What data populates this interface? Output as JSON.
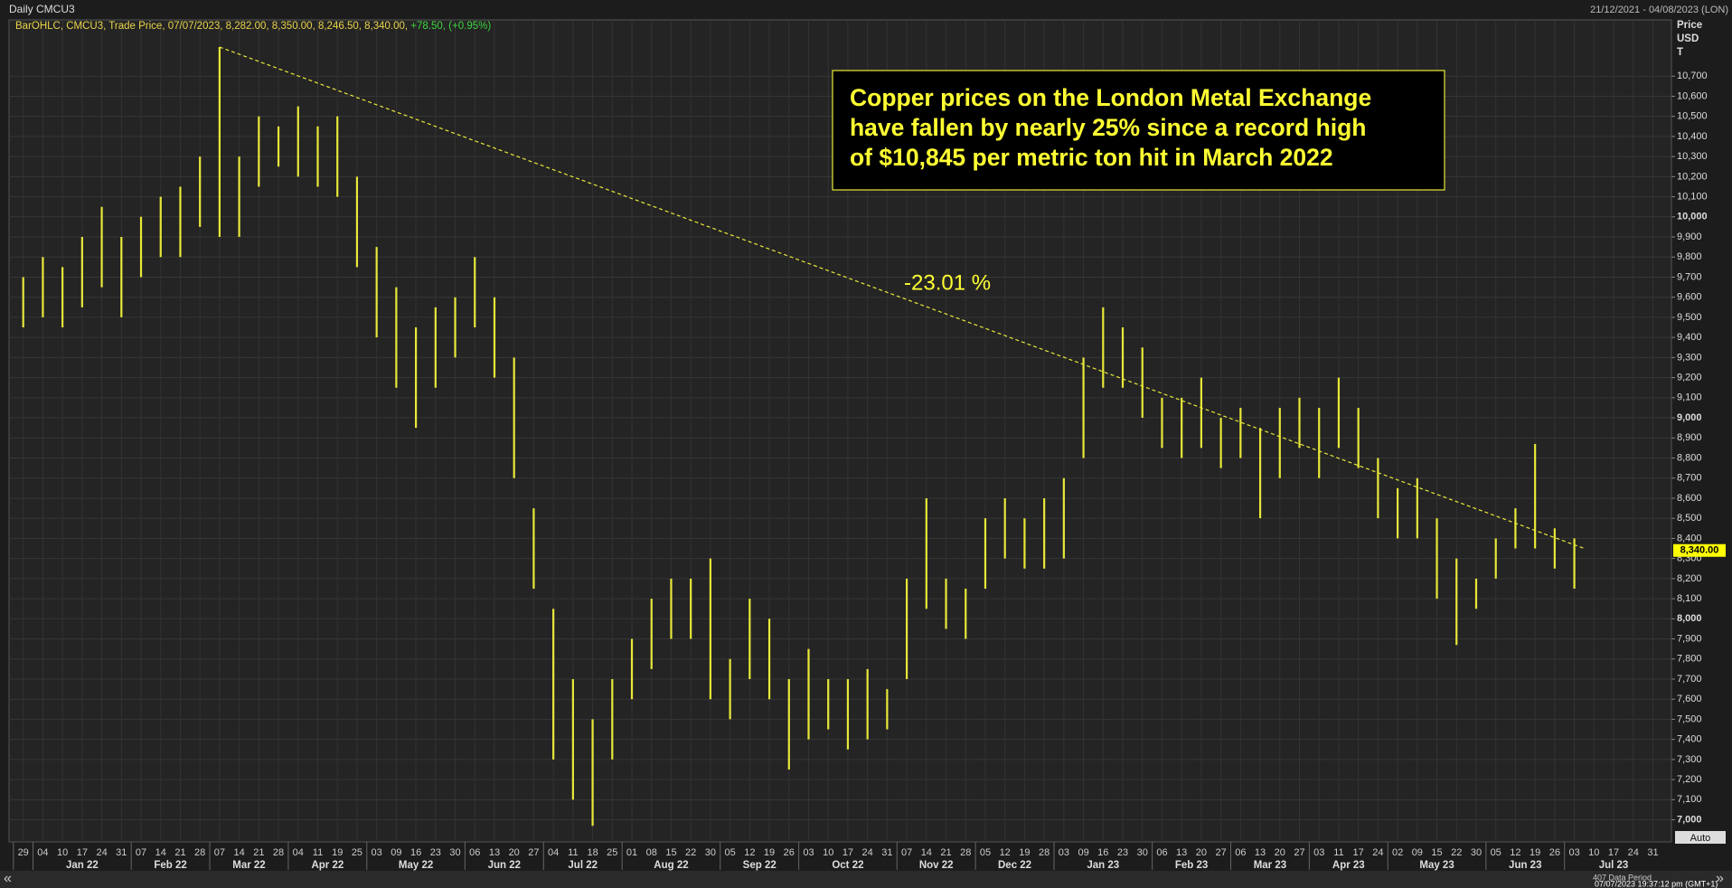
{
  "chart_data": {
    "type": "bar_range",
    "title": "Daily CMCU3",
    "date_range": "21/12/2021 - 04/08/2023 (LON)",
    "legend_text": "BarOHLC, CMCU3, Trade Price, 07/07/2023, 8,282.00, 8,350.00, 8,246.50, 8,340.00,",
    "legend_change": "+78.50, (+0.95%)",
    "y_axis_label": [
      "Price",
      "USD",
      "T"
    ],
    "annotation": [
      "Copper prices on the London Metal Exchange",
      "have fallen by nearly 25% since a record high",
      "of $10,845 per metric ton hit in March 2022"
    ],
    "trend_label": "-23.01 %",
    "trendline": {
      "values": [
        10845,
        8350
      ]
    },
    "last_price": {
      "value": 8340,
      "label": "8,340.00"
    },
    "auto_label": "Auto",
    "footer_period": "407 Data Period",
    "footer_time": "07/07/2023 19:37:12 pm (GMT+1)",
    "color": "#e8e83a",
    "grid": true,
    "xtick_labels": [
      "29",
      "04",
      "10",
      "17",
      "24",
      "31",
      "07",
      "14",
      "21",
      "28",
      "07",
      "14",
      "21",
      "28",
      "04",
      "11",
      "19",
      "25",
      "03",
      "09",
      "16",
      "23",
      "30",
      "06",
      "13",
      "20",
      "27",
      "04",
      "11",
      "18",
      "25",
      "01",
      "08",
      "15",
      "22",
      "30",
      "05",
      "12",
      "19",
      "26",
      "03",
      "10",
      "17",
      "24",
      "31",
      "07",
      "14",
      "21",
      "28",
      "05",
      "12",
      "19",
      "28",
      "03",
      "09",
      "16",
      "23",
      "30",
      "06",
      "13",
      "20",
      "27",
      "06",
      "13",
      "20",
      "27",
      "03",
      "11",
      "17",
      "24",
      "02",
      "09",
      "15",
      "22",
      "30",
      "05",
      "12",
      "19",
      "26",
      "03",
      "10",
      "17",
      "24",
      "31"
    ],
    "months": [
      "Jan 22",
      "Feb 22",
      "Mar 22",
      "Apr 22",
      "May 22",
      "Jun 22",
      "Jul 22",
      "Aug 22",
      "Sep 22",
      "Oct 22",
      "Nov 22",
      "Dec 22",
      "Jan 23",
      "Feb 23",
      "Mar 23",
      "Apr 23",
      "May 23",
      "Jun 23",
      "Jul 23"
    ],
    "high": [
      9700,
      9800,
      9750,
      9900,
      10050,
      9900,
      10000,
      10100,
      10150,
      10300,
      10845,
      10300,
      10500,
      10450,
      10550,
      10450,
      10500,
      10200,
      9850,
      9650,
      9450,
      9550,
      9600,
      9800,
      9600,
      9300,
      8550,
      8050,
      7700,
      7500,
      7700,
      7900,
      8100,
      8200,
      8200,
      8300,
      7800,
      8100,
      8000,
      7700,
      7850,
      7700,
      7700,
      7750,
      7650,
      8200,
      8600,
      8200,
      8150,
      8500,
      8600,
      8500,
      8600,
      8700,
      9300,
      9550,
      9450,
      9350,
      9100,
      9100,
      9200,
      9000,
      9050,
      8950,
      9050,
      9100,
      9050,
      9200,
      9050,
      8800,
      8650,
      8700,
      8500,
      8300,
      8200,
      8400,
      8550,
      8870,
      8450,
      8400
    ],
    "low": [
      9450,
      9500,
      9450,
      9550,
      9650,
      9500,
      9700,
      9800,
      9800,
      9950,
      9900,
      9900,
      10150,
      10250,
      10200,
      10150,
      10100,
      9750,
      9400,
      9150,
      8950,
      9150,
      9300,
      9450,
      9200,
      8700,
      8150,
      7300,
      7100,
      6970,
      7300,
      7600,
      7750,
      7900,
      7900,
      7600,
      7500,
      7700,
      7600,
      7250,
      7400,
      7450,
      7350,
      7400,
      7450,
      7700,
      8050,
      7950,
      7900,
      8150,
      8300,
      8250,
      8250,
      8300,
      8800,
      9150,
      9150,
      9000,
      8850,
      8800,
      8850,
      8750,
      8800,
      8500,
      8700,
      8850,
      8700,
      8850,
      8750,
      8500,
      8400,
      8400,
      8100,
      7870,
      8050,
      8200,
      8350,
      8350,
      8250,
      8150
    ],
    "ylim": [
      6890,
      10980
    ],
    "yticks": [
      {
        "value": 7000,
        "label": "7,000"
      },
      {
        "value": 7100,
        "label": "7,100"
      },
      {
        "value": 7200,
        "label": "7,200"
      },
      {
        "value": 7300,
        "label": "7,300"
      },
      {
        "value": 7400,
        "label": "7,400"
      },
      {
        "value": 7500,
        "label": "7,500"
      },
      {
        "value": 7600,
        "label": "7,600"
      },
      {
        "value": 7700,
        "label": "7,700"
      },
      {
        "value": 7800,
        "label": "7,800"
      },
      {
        "value": 7900,
        "label": "7,900"
      },
      {
        "value": 8000,
        "label": "8,000"
      },
      {
        "value": 8100,
        "label": "8,100"
      },
      {
        "value": 8200,
        "label": "8,200"
      },
      {
        "value": 8300,
        "label": "8,300"
      },
      {
        "value": 8400,
        "label": "8,400"
      },
      {
        "value": 8500,
        "label": "8,500"
      },
      {
        "value": 8600,
        "label": "8,600"
      },
      {
        "value": 8700,
        "label": "8,700"
      },
      {
        "value": 8800,
        "label": "8,800"
      },
      {
        "value": 8900,
        "label": "8,900"
      },
      {
        "value": 9000,
        "label": "9,000"
      },
      {
        "value": 9100,
        "label": "9,100"
      },
      {
        "value": 9200,
        "label": "9,200"
      },
      {
        "value": 9300,
        "label": "9,300"
      },
      {
        "value": 9400,
        "label": "9,400"
      },
      {
        "value": 9500,
        "label": "9,500"
      },
      {
        "value": 9600,
        "label": "9,600"
      },
      {
        "value": 9700,
        "label": "9,700"
      },
      {
        "value": 9800,
        "label": "9,800"
      },
      {
        "value": 9900,
        "label": "9,900"
      },
      {
        "value": 10000,
        "label": "10,000"
      },
      {
        "value": 10100,
        "label": "10,100"
      },
      {
        "value": 10200,
        "label": "10,200"
      },
      {
        "value": 10300,
        "label": "10,300"
      },
      {
        "value": 10400,
        "label": "10,400"
      },
      {
        "value": 10500,
        "label": "10,500"
      },
      {
        "value": 10600,
        "label": "10,600"
      },
      {
        "value": 10700,
        "label": "10,700"
      }
    ]
  }
}
